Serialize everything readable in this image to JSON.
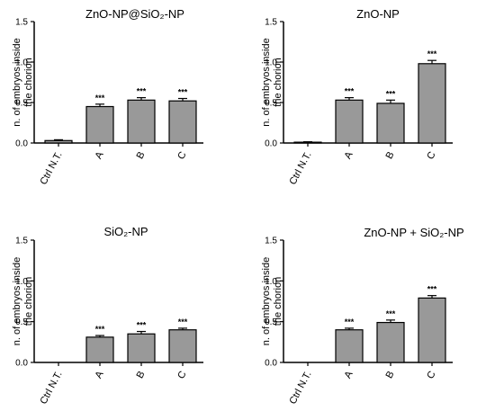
{
  "chart_data": [
    {
      "type": "bar",
      "title": "ZnO-NP@SiO₂-NP",
      "ylabel_lines": [
        "n. of embryos inside",
        "the chorion"
      ],
      "ylim": [
        0,
        1.5
      ],
      "yticks": [
        "0.0",
        "0.5",
        "1.0",
        "1.5"
      ],
      "categories": [
        "Ctrl N.T.",
        "A",
        "B",
        "C"
      ],
      "values": [
        0.03,
        0.45,
        0.53,
        0.52
      ],
      "errors": [
        0.01,
        0.03,
        0.03,
        0.03
      ],
      "significance": [
        "",
        "***",
        "***",
        "***"
      ],
      "bar_color": "#999999"
    },
    {
      "type": "bar",
      "title": "ZnO-NP",
      "ylabel_lines": [
        "n. of embryos inside",
        "the chorion"
      ],
      "ylim": [
        0,
        1.5
      ],
      "yticks": [
        "0.0",
        "0.5",
        "1.0",
        "1.5"
      ],
      "categories": [
        "Ctrl N.T.",
        "A",
        "B",
        "C"
      ],
      "values": [
        0.01,
        0.53,
        0.49,
        0.98
      ],
      "errors": [
        0.005,
        0.03,
        0.04,
        0.04
      ],
      "significance": [
        "",
        "***",
        "***",
        "***"
      ],
      "bar_color": "#999999"
    },
    {
      "type": "bar",
      "title": "SiO₂-NP",
      "ylabel_lines": [
        "n. of embryos inside",
        "the chorion"
      ],
      "ylim": [
        0,
        1.5
      ],
      "yticks": [
        "0.0",
        "0.5",
        "1.0",
        "1.5"
      ],
      "categories": [
        "Ctrl N.T.",
        "A",
        "B",
        "C"
      ],
      "values": [
        0.0,
        0.31,
        0.35,
        0.4
      ],
      "errors": [
        0.0,
        0.02,
        0.03,
        0.02
      ],
      "significance": [
        "",
        "***",
        "***",
        "***"
      ],
      "bar_color": "#999999"
    },
    {
      "type": "bar",
      "title": "ZnO-NP + SiO₂-NP",
      "ylabel_lines": [
        "n. of embryos inside",
        "the chorion"
      ],
      "ylim": [
        0,
        1.5
      ],
      "yticks": [
        "0.0",
        "0.5",
        "1.0",
        "1.5"
      ],
      "categories": [
        "Ctrl N.T.",
        "A",
        "B",
        "C"
      ],
      "values": [
        0.0,
        0.4,
        0.49,
        0.79
      ],
      "errors": [
        0.0,
        0.02,
        0.03,
        0.03
      ],
      "significance": [
        "",
        "***",
        "***",
        "***"
      ],
      "bar_color": "#999999"
    }
  ]
}
